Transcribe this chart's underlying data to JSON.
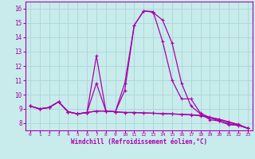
{
  "background_color": "#c8ecec",
  "grid_color": "#b0d8d8",
  "line_color": "#aa00aa",
  "xlabel": "Windchill (Refroidissement éolien,°C)",
  "xlim": [
    -0.5,
    23.5
  ],
  "ylim": [
    7.5,
    16.5
  ],
  "yticks": [
    8,
    9,
    10,
    11,
    12,
    13,
    14,
    15,
    16
  ],
  "xticks": [
    0,
    1,
    2,
    3,
    4,
    5,
    6,
    7,
    8,
    9,
    10,
    11,
    12,
    13,
    14,
    15,
    16,
    17,
    18,
    19,
    20,
    21,
    22,
    23
  ],
  "series": [
    [
      9.2,
      9.0,
      9.1,
      9.5,
      8.8,
      8.65,
      8.75,
      10.8,
      8.85,
      8.8,
      10.8,
      14.85,
      15.85,
      15.8,
      13.7,
      11.0,
      9.7,
      9.7,
      8.7,
      8.4,
      8.15,
      7.95,
      7.85,
      7.65
    ],
    [
      9.2,
      9.0,
      9.1,
      9.5,
      8.8,
      8.65,
      8.75,
      12.7,
      8.85,
      8.8,
      10.3,
      14.85,
      15.85,
      15.75,
      15.2,
      13.6,
      10.8,
      9.2,
      8.65,
      8.25,
      8.15,
      7.9,
      7.85,
      7.65
    ],
    [
      9.2,
      9.0,
      9.1,
      9.5,
      8.8,
      8.65,
      8.75,
      8.85,
      8.85,
      8.8,
      8.75,
      8.75,
      8.72,
      8.7,
      8.67,
      8.65,
      8.62,
      8.58,
      8.52,
      8.38,
      8.25,
      8.05,
      7.9,
      7.65
    ],
    [
      9.2,
      9.0,
      9.1,
      9.5,
      8.8,
      8.65,
      8.75,
      8.85,
      8.85,
      8.8,
      8.75,
      8.75,
      8.72,
      8.7,
      8.67,
      8.65,
      8.62,
      8.6,
      8.55,
      8.42,
      8.28,
      8.1,
      7.92,
      7.65
    ]
  ]
}
